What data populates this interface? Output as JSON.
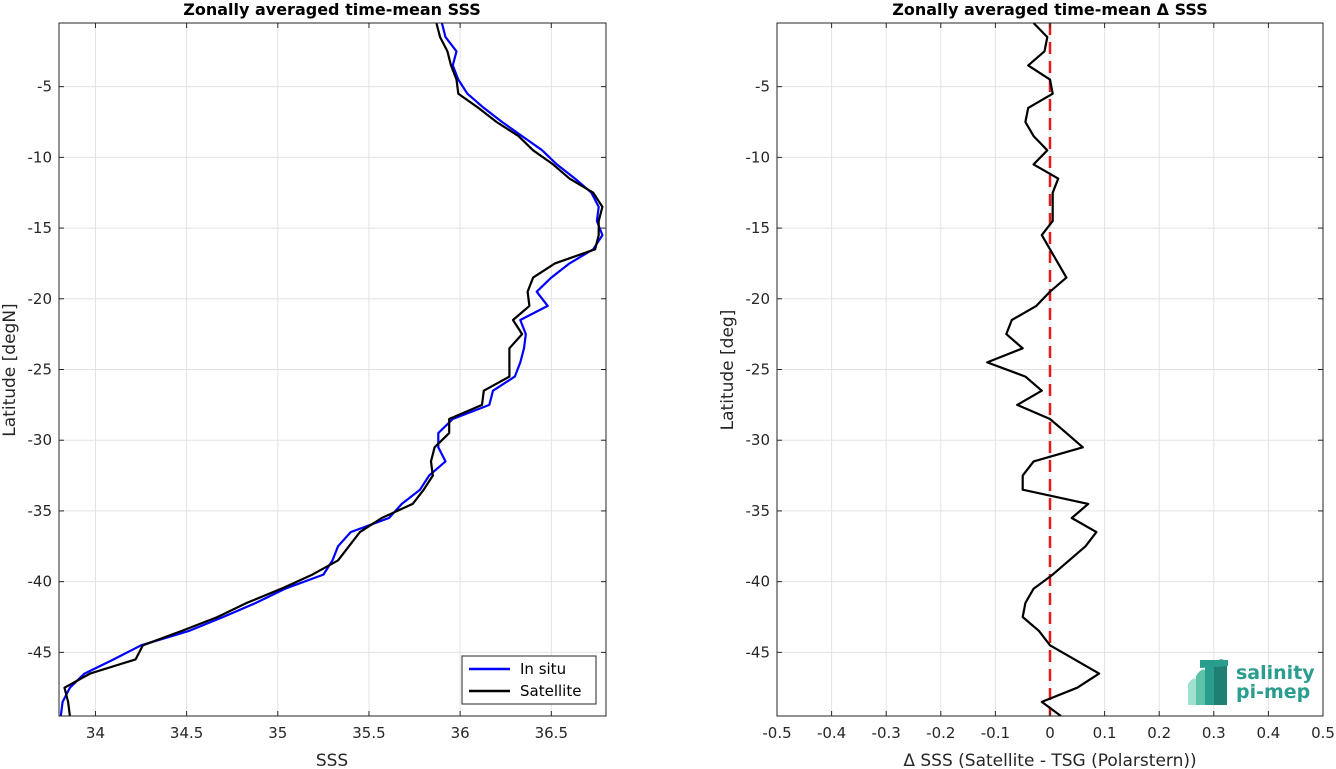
{
  "colors": {
    "in_situ": "#0000ff",
    "satellite": "#000000",
    "zero_line": "#e41a1c",
    "logo": "#2a9d8f",
    "grid": "#e3e3e3"
  },
  "logo": {
    "line1": "salinity",
    "line2": "pi-mep"
  },
  "chart_data": [
    {
      "type": "line",
      "title": "Zonally averaged time-mean SSS",
      "xlabel": "SSS",
      "ylabel": "Latitude [degN]",
      "xlim": [
        33.8,
        36.8
      ],
      "ylim": [
        -49.5,
        -0.5
      ],
      "xticks": [
        34,
        34.5,
        35,
        35.5,
        36,
        36.5
      ],
      "xtick_labels": [
        "34",
        "34.5",
        "35",
        "35.5",
        "36",
        "36.5"
      ],
      "yticks": [
        -5,
        -10,
        -15,
        -20,
        -25,
        -30,
        -35,
        -40,
        -45
      ],
      "ytick_labels": [
        "-5",
        "-10",
        "-15",
        "-20",
        "-25",
        "-30",
        "-35",
        "-40",
        "-45"
      ],
      "grid": true,
      "legend": {
        "position": "bottom-right",
        "entries": [
          "In situ",
          "Satellite"
        ]
      },
      "series": [
        {
          "name": "In situ",
          "color": "#0000ff",
          "points": [
            [
              35.9,
              -0.5
            ],
            [
              35.92,
              -1.5
            ],
            [
              35.98,
              -2.5
            ],
            [
              35.96,
              -3.5
            ],
            [
              35.99,
              -4.5
            ],
            [
              36.04,
              -5.5
            ],
            [
              36.13,
              -6.5
            ],
            [
              36.23,
              -7.5
            ],
            [
              36.34,
              -8.5
            ],
            [
              36.45,
              -9.5
            ],
            [
              36.53,
              -10.5
            ],
            [
              36.63,
              -11.5
            ],
            [
              36.72,
              -12.5
            ],
            [
              36.76,
              -13.5
            ],
            [
              36.75,
              -14.5
            ],
            [
              36.78,
              -15.5
            ],
            [
              36.73,
              -16.5
            ],
            [
              36.6,
              -17.5
            ],
            [
              36.5,
              -18.5
            ],
            [
              36.42,
              -19.5
            ],
            [
              36.48,
              -20.5
            ],
            [
              36.33,
              -21.5
            ],
            [
              36.36,
              -22.5
            ],
            [
              36.35,
              -23.5
            ],
            [
              36.33,
              -24.5
            ],
            [
              36.3,
              -25.5
            ],
            [
              36.18,
              -26.5
            ],
            [
              36.16,
              -27.5
            ],
            [
              35.96,
              -28.5
            ],
            [
              35.88,
              -29.5
            ],
            [
              35.88,
              -30.5
            ],
            [
              35.92,
              -31.5
            ],
            [
              35.83,
              -32.5
            ],
            [
              35.78,
              -33.5
            ],
            [
              35.68,
              -34.5
            ],
            [
              35.61,
              -35.5
            ],
            [
              35.4,
              -36.5
            ],
            [
              35.33,
              -37.5
            ],
            [
              35.3,
              -38.5
            ],
            [
              35.25,
              -39.5
            ],
            [
              35.04,
              -40.5
            ],
            [
              34.88,
              -41.5
            ],
            [
              34.7,
              -42.5
            ],
            [
              34.51,
              -43.5
            ],
            [
              34.25,
              -44.5
            ],
            [
              34.1,
              -45.5
            ],
            [
              33.94,
              -46.5
            ],
            [
              33.86,
              -47.5
            ],
            [
              33.82,
              -48.5
            ],
            [
              33.81,
              -49.5
            ]
          ]
        },
        {
          "name": "Satellite",
          "color": "#000000",
          "points": [
            [
              35.87,
              -0.5
            ],
            [
              35.89,
              -1.5
            ],
            [
              35.93,
              -2.5
            ],
            [
              35.95,
              -3.5
            ],
            [
              35.98,
              -4.5
            ],
            [
              35.99,
              -5.5
            ],
            [
              36.1,
              -6.5
            ],
            [
              36.2,
              -7.5
            ],
            [
              36.32,
              -8.5
            ],
            [
              36.4,
              -9.5
            ],
            [
              36.51,
              -10.5
            ],
            [
              36.6,
              -11.5
            ],
            [
              36.73,
              -12.5
            ],
            [
              36.78,
              -13.5
            ],
            [
              36.76,
              -14.5
            ],
            [
              36.76,
              -15.5
            ],
            [
              36.74,
              -16.5
            ],
            [
              36.52,
              -17.5
            ],
            [
              36.4,
              -18.5
            ],
            [
              36.37,
              -19.5
            ],
            [
              36.38,
              -20.5
            ],
            [
              36.29,
              -21.5
            ],
            [
              36.34,
              -22.5
            ],
            [
              36.27,
              -23.5
            ],
            [
              36.27,
              -24.5
            ],
            [
              36.27,
              -25.5
            ],
            [
              36.13,
              -26.5
            ],
            [
              36.12,
              -27.5
            ],
            [
              35.94,
              -28.5
            ],
            [
              35.94,
              -29.5
            ],
            [
              35.86,
              -30.5
            ],
            [
              35.84,
              -31.5
            ],
            [
              35.85,
              -32.5
            ],
            [
              35.8,
              -33.5
            ],
            [
              35.74,
              -34.5
            ],
            [
              35.57,
              -35.5
            ],
            [
              35.45,
              -36.5
            ],
            [
              35.39,
              -37.5
            ],
            [
              35.33,
              -38.5
            ],
            [
              35.19,
              -39.5
            ],
            [
              35.02,
              -40.5
            ],
            [
              34.83,
              -41.5
            ],
            [
              34.67,
              -42.5
            ],
            [
              34.47,
              -43.5
            ],
            [
              34.26,
              -44.5
            ],
            [
              34.22,
              -45.5
            ],
            [
              33.97,
              -46.5
            ],
            [
              33.83,
              -47.5
            ],
            [
              33.85,
              -48.5
            ],
            [
              33.86,
              -49.5
            ]
          ]
        }
      ]
    },
    {
      "type": "line",
      "title": "Zonally averaged time-mean Δ SSS",
      "xlabel": "Δ SSS (Satellite - TSG (Polarstern))",
      "ylabel": "Latitude [deg]",
      "xlim": [
        -0.5,
        0.5
      ],
      "ylim": [
        -49.5,
        -0.5
      ],
      "xticks": [
        -0.5,
        -0.4,
        -0.3,
        -0.2,
        -0.1,
        0,
        0.1,
        0.2,
        0.3,
        0.4,
        0.5
      ],
      "xtick_labels": [
        "-0.5",
        "-0.4",
        "-0.3",
        "-0.2",
        "-0.1",
        "0",
        "0.1",
        "0.2",
        "0.3",
        "0.4",
        "0.5"
      ],
      "yticks": [
        -5,
        -10,
        -15,
        -20,
        -25,
        -30,
        -35,
        -40,
        -45
      ],
      "ytick_labels": [
        "-5",
        "-10",
        "-15",
        "-20",
        "-25",
        "-30",
        "-35",
        "-40",
        "-45"
      ],
      "grid": true,
      "reference_line": {
        "x": 0,
        "style": "dashed",
        "color": "#e41a1c"
      },
      "series": [
        {
          "color": "#000000",
          "points": [
            [
              -0.03,
              -0.5
            ],
            [
              -0.005,
              -1.5
            ],
            [
              -0.01,
              -2.5
            ],
            [
              -0.04,
              -3.5
            ],
            [
              0.0,
              -4.5
            ],
            [
              0.005,
              -5.5
            ],
            [
              -0.04,
              -6.5
            ],
            [
              -0.045,
              -7.5
            ],
            [
              -0.03,
              -8.5
            ],
            [
              -0.005,
              -9.5
            ],
            [
              -0.03,
              -10.5
            ],
            [
              0.015,
              -11.5
            ],
            [
              0.005,
              -12.5
            ],
            [
              0.005,
              -13.5
            ],
            [
              0.005,
              -14.5
            ],
            [
              -0.015,
              -15.5
            ],
            [
              0.0,
              -16.5
            ],
            [
              0.015,
              -17.5
            ],
            [
              0.03,
              -18.5
            ],
            [
              0.0,
              -19.5
            ],
            [
              -0.025,
              -20.5
            ],
            [
              -0.07,
              -21.5
            ],
            [
              -0.08,
              -22.5
            ],
            [
              -0.05,
              -23.5
            ],
            [
              -0.115,
              -24.5
            ],
            [
              -0.045,
              -25.5
            ],
            [
              -0.015,
              -26.5
            ],
            [
              -0.06,
              -27.5
            ],
            [
              0.0,
              -28.5
            ],
            [
              0.03,
              -29.5
            ],
            [
              0.06,
              -30.5
            ],
            [
              -0.03,
              -31.5
            ],
            [
              -0.05,
              -32.5
            ],
            [
              -0.05,
              -33.5
            ],
            [
              0.07,
              -34.5
            ],
            [
              0.04,
              -35.5
            ],
            [
              0.085,
              -36.5
            ],
            [
              0.065,
              -37.5
            ],
            [
              0.035,
              -38.5
            ],
            [
              0.005,
              -39.5
            ],
            [
              -0.03,
              -40.5
            ],
            [
              -0.045,
              -41.5
            ],
            [
              -0.05,
              -42.5
            ],
            [
              -0.02,
              -43.5
            ],
            [
              0.0,
              -44.5
            ],
            [
              0.045,
              -45.5
            ],
            [
              0.09,
              -46.5
            ],
            [
              0.05,
              -47.5
            ],
            [
              -0.015,
              -48.5
            ],
            [
              0.02,
              -49.5
            ]
          ]
        }
      ]
    }
  ]
}
